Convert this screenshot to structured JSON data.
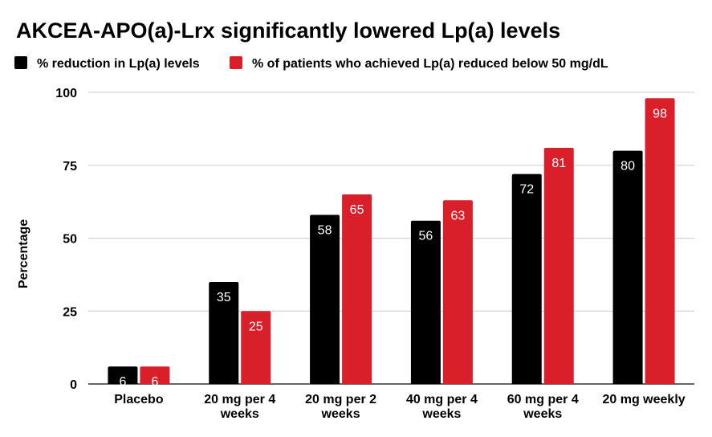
{
  "chart_data": {
    "type": "bar",
    "title": "AKCEA-APO(a)-Lrx significantly lowered Lp(a) levels",
    "ylabel": "Percentage",
    "xlabel": "",
    "ylim": [
      0,
      100
    ],
    "yticks": [
      0,
      25,
      50,
      75,
      100
    ],
    "grid": true,
    "legend_position": "top-left",
    "categories": [
      [
        "Placebo"
      ],
      [
        "20 mg per 4",
        "weeks"
      ],
      [
        "20 mg per 2",
        "weeks"
      ],
      [
        "40 mg per 4",
        "weeks"
      ],
      [
        "60 mg per 4",
        "weeks"
      ],
      [
        "20 mg weekly"
      ]
    ],
    "series": [
      {
        "name": "% reduction in Lp(a) levels",
        "color": "#000000",
        "values": [
          6,
          35,
          58,
          56,
          72,
          80
        ]
      },
      {
        "name": "% of patients who achieved Lp(a) reduced below 50 mg/dL",
        "color": "#d91f2a",
        "values": [
          6,
          25,
          65,
          63,
          81,
          98
        ]
      }
    ]
  }
}
